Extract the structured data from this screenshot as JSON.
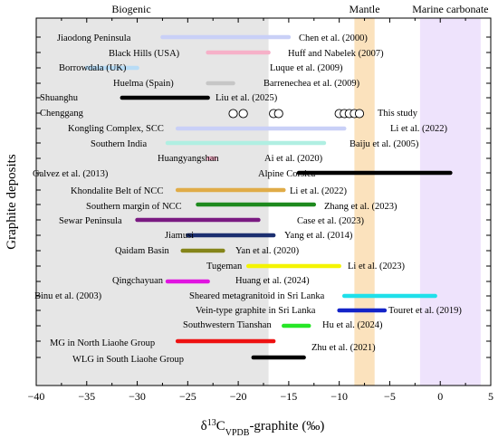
{
  "chart_data": {
    "type": "range-bar",
    "ylabel": "Graphite deposits",
    "xlabel": {
      "main": "δ",
      "sup": "13",
      "c": "C",
      "sub": "VPDB",
      "rest": "-graphite (‰)"
    },
    "xlim": [
      -40,
      5
    ],
    "xticks": [
      -40,
      -35,
      -30,
      -25,
      -20,
      -15,
      -10,
      -5,
      0,
      5
    ],
    "xtick_labels": [
      "−40",
      "−35",
      "−30",
      "−25",
      "−20",
      "−15",
      "−10",
      "−5",
      "0",
      "5"
    ],
    "regions": [
      {
        "name": "Biogenic",
        "x": [
          -40,
          -17
        ],
        "color": "#e6e6e6"
      },
      {
        "name": "Mantle",
        "x": [
          -8.5,
          -6.5
        ],
        "color": "#fbe2bd"
      },
      {
        "name": "Marine carbonate",
        "x": [
          -2,
          4
        ],
        "color": "#eee3fc"
      }
    ],
    "series": [
      {
        "name": "Jiaodong Peninsula",
        "range": [
          -27.5,
          -15
        ],
        "color": "#c9d0f7",
        "citation": "Chen et al. (2000)"
      },
      {
        "name": "Black Hills (USA)",
        "range": [
          -23,
          -17
        ],
        "color": "#f6b1c8",
        "citation": "Huff and Nabelek (2007)"
      },
      {
        "name": "Borrowdala (UK)",
        "range": [
          -35,
          -30
        ],
        "color": "#b8dcf6",
        "citation": "Luque et al. (2009)"
      },
      {
        "name": "Huelma (Spain)",
        "range": [
          -23,
          -20.5
        ],
        "color": "#c6c6c6",
        "citation": "Barrenechea et al. (2009)"
      },
      {
        "name": "Shuanghu",
        "range": [
          -31.5,
          -23
        ],
        "color": "#000000",
        "citation": "Liu et al. (2025)"
      },
      {
        "name": "Chenggang",
        "range": null,
        "points": [
          -20.5,
          -19.5,
          -16.5,
          -16,
          -10,
          -9.5,
          -9,
          -8.5,
          -8
        ],
        "color": "#000000",
        "citation": "This study"
      },
      {
        "name": "Kongling Complex, SCC",
        "range": [
          -26,
          -9.5
        ],
        "color": "#c9d0f7",
        "citation": "Li et al. (2022)"
      },
      {
        "name": "Southern India",
        "range": [
          -27,
          -11.5
        ],
        "color": "#b0efe2",
        "citation": "Baiju et al. (2005)"
      },
      {
        "name": "Huangyangshan",
        "range": [
          -23,
          -22.3
        ],
        "color": "#f6b1c8",
        "citation": "Ai et al. (2020)"
      },
      {
        "name": "Alpine Corsica",
        "range": [
          -14,
          1
        ],
        "color": "#000000",
        "citation": "Galvez et al. (2013)"
      },
      {
        "name": "Khondalite Belt of NCC",
        "range": [
          -26,
          -15.5
        ],
        "color": "#e0ac48",
        "citation": "Li et al. (2022)"
      },
      {
        "name": "Southern margin of NCC",
        "range": [
          -24,
          -12.5
        ],
        "color": "#1e8a1e",
        "citation": "Zhang et al. (2023)"
      },
      {
        "name": "Sewar Peninsula",
        "range": [
          -30,
          -18
        ],
        "color": "#7a1a82",
        "citation": "Case et al. (2023)"
      },
      {
        "name": "Jiamusi",
        "range": [
          -25,
          -16.5
        ],
        "color": "#1c2f70",
        "citation": "Yang et al. (2014)"
      },
      {
        "name": "Qaidam Basin",
        "range": [
          -25.5,
          -21.5
        ],
        "color": "#85851a",
        "citation": "Yan et al. (2020)"
      },
      {
        "name": "Tugeman",
        "range": [
          -19,
          -10
        ],
        "color": "#f4f400",
        "citation": "Li et al. (2023)"
      },
      {
        "name": "Qingchayuan",
        "range": [
          -27,
          -23
        ],
        "color": "#e014e0",
        "citation": "Huang et al. (2024)"
      },
      {
        "name": "Sheared metagranitoid in Sri Lanka",
        "range": [
          -9.5,
          -0.5
        ],
        "color": "#1fe0ea",
        "citation": "Binu et al. (2003)"
      },
      {
        "name": "Vein-type graphite in Sri Lanka",
        "range": [
          -10,
          -5.5
        ],
        "color": "#1424c8",
        "citation": "Touret et al. (2019)"
      },
      {
        "name": "Southwestern Tianshan",
        "range": [
          -15.5,
          -13
        ],
        "color": "#26e626",
        "citation": "Hu et al. (2024)"
      },
      {
        "name": "MG in North Liaohe Group",
        "range": [
          -26,
          -16.5
        ],
        "color": "#ee1111",
        "citation": "Zhu et al. (2021)"
      },
      {
        "name": "WLG in South Liaohe Group",
        "range": [
          -18.5,
          -13.5
        ],
        "color": "#000000",
        "citation": ""
      }
    ],
    "citations_unplaced_note": false,
    "grid": false
  }
}
